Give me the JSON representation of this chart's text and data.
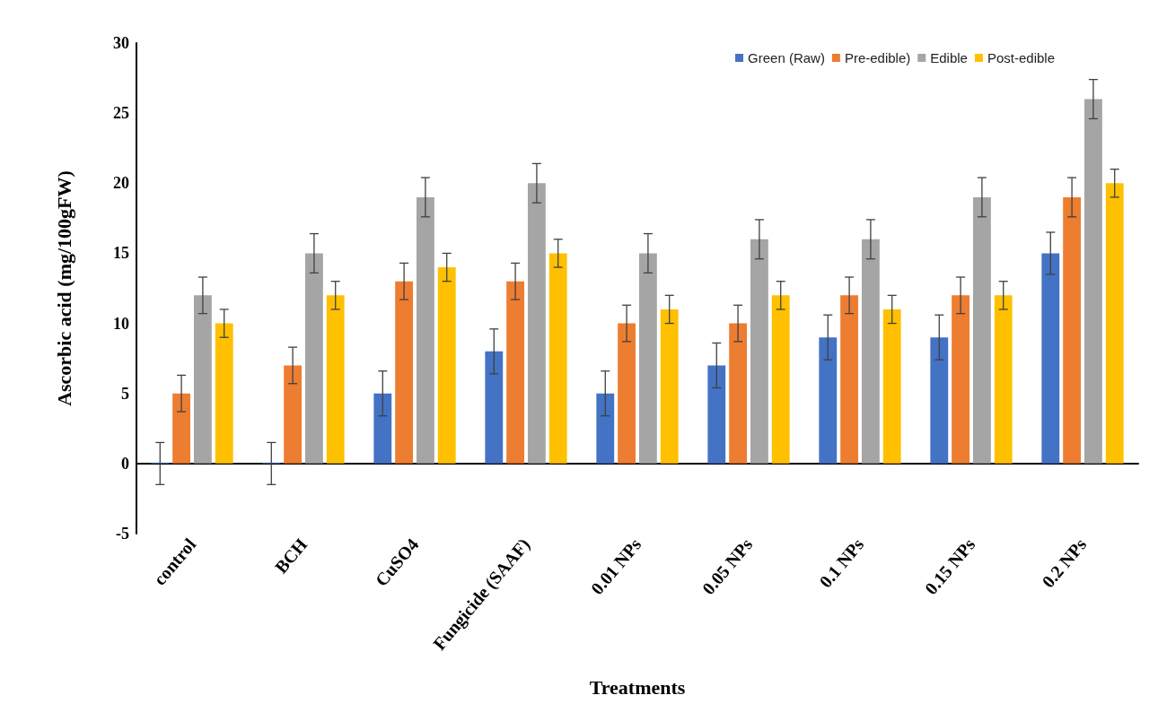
{
  "chart_data": {
    "type": "bar",
    "xlabel": "Treatments",
    "ylabel": "Ascorbic acid (mg/100gFW)",
    "categories": [
      "control",
      "BCH",
      "CuSO4",
      "Fungicide (SAAF)",
      "0.01 NPs",
      "0.05 NPs",
      "0.1 NPs",
      "0.15 NPs",
      "0.2 NPs"
    ],
    "series": [
      {
        "name": "Green (Raw)",
        "color": "#4472c4",
        "values": [
          0,
          0,
          5,
          8,
          5,
          7,
          9,
          9,
          15
        ],
        "errors": [
          1.5,
          1.5,
          1.6,
          1.6,
          1.6,
          1.6,
          1.6,
          1.6,
          1.5
        ]
      },
      {
        "name": "Pre-edible)",
        "color": "#ed7d31",
        "values": [
          5,
          7,
          13,
          13,
          10,
          10,
          12,
          12,
          19
        ],
        "errors": [
          1.3,
          1.3,
          1.3,
          1.3,
          1.3,
          1.3,
          1.3,
          1.3,
          1.4
        ]
      },
      {
        "name": "Edible",
        "color": "#a5a5a5",
        "values": [
          12,
          15,
          19,
          20,
          15,
          16,
          16,
          19,
          26
        ],
        "errors": [
          1.3,
          1.4,
          1.4,
          1.4,
          1.4,
          1.4,
          1.4,
          1.4,
          1.4
        ]
      },
      {
        "name": "Post-edible",
        "color": "#ffc000",
        "values": [
          10,
          12,
          14,
          15,
          11,
          12,
          11,
          12,
          20
        ],
        "errors": [
          1,
          1,
          1,
          1,
          1,
          1,
          1,
          1,
          1
        ]
      }
    ],
    "ylim": [
      -5,
      30
    ],
    "yticks": [
      -5,
      0,
      5,
      10,
      15,
      20,
      25,
      30
    ],
    "legend": "top right"
  }
}
